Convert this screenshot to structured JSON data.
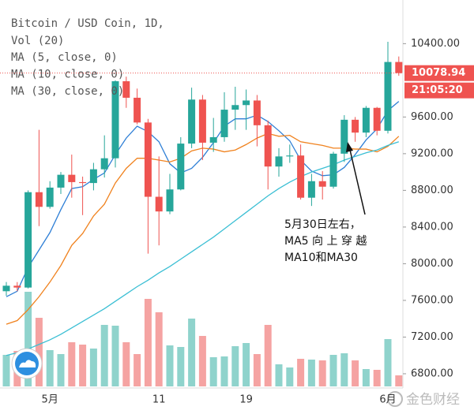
{
  "chart_data": {
    "type": "candlestick",
    "title": "Bitcoin / USD Coin, 1D,",
    "volume_label": "Vol (20)",
    "categories": [
      null,
      null,
      null,
      null,
      "5月",
      null,
      null,
      null,
      null,
      null,
      null,
      null,
      null,
      null,
      "11",
      null,
      null,
      null,
      null,
      null,
      null,
      null,
      "19",
      null,
      null,
      null,
      null,
      null,
      null,
      null,
      null,
      null,
      null,
      null,
      null,
      "6月",
      null
    ],
    "open": [
      7700,
      7760,
      7740,
      8780,
      8620,
      8830,
      8970,
      8890,
      8880,
      9030,
      9150,
      9990,
      9810,
      9540,
      8730,
      8570,
      8810,
      9310,
      9790,
      9320,
      9380,
      9680,
      9730,
      9780,
      9510,
      9060,
      9170,
      9180,
      8720,
      8900,
      8840,
      9200,
      9570,
      9430,
      9700,
      9450,
      10200
    ],
    "high": [
      7800,
      7800,
      8800,
      9460,
      8900,
      9000,
      9190,
      8950,
      9100,
      9400,
      10000,
      10040,
      9910,
      9580,
      9170,
      8980,
      9380,
      9920,
      9840,
      9590,
      9870,
      9930,
      9900,
      9840,
      9560,
      9260,
      9300,
      9300,
      8980,
      9010,
      9220,
      9620,
      9600,
      9720,
      9710,
      10420,
      10260
    ],
    "low": [
      7650,
      7700,
      7730,
      8410,
      8600,
      8760,
      8720,
      8530,
      8800,
      8940,
      9050,
      9700,
      9520,
      8110,
      8200,
      8540,
      8800,
      9260,
      9130,
      9220,
      9330,
      9460,
      9460,
      9280,
      8810,
      8950,
      9100,
      8700,
      8630,
      8700,
      8820,
      9110,
      9330,
      9380,
      9400,
      9420,
      10050
    ],
    "close": [
      7760,
      7740,
      8780,
      8620,
      8830,
      8970,
      8890,
      8880,
      9030,
      9150,
      9990,
      9810,
      9540,
      8730,
      8570,
      8810,
      9310,
      9790,
      9320,
      9380,
      9680,
      9730,
      9780,
      9510,
      9060,
      9170,
      9180,
      8720,
      8900,
      8840,
      9200,
      9570,
      9430,
      9700,
      9450,
      10200,
      10078.94
    ],
    "volume": [
      40,
      45,
      120,
      87,
      46,
      41,
      56,
      53,
      48,
      78,
      77,
      56,
      41,
      111,
      94,
      52,
      50,
      86,
      64,
      37,
      38,
      51,
      55,
      41,
      78,
      28,
      24,
      35,
      34,
      33,
      40,
      42,
      33,
      22,
      21,
      60,
      14
    ],
    "up_color": "#26a69a",
    "down_color": "#ef5350",
    "up_volume_color": "#8fd3cc",
    "down_volume_color": "#f5a3a2",
    "series": [
      {
        "name": "MA (5, close, 0)",
        "color": "#2e7fd6",
        "values": [
          7640,
          7700,
          7960,
          8150,
          8340,
          8590,
          8820,
          8840,
          8920,
          8990,
          9190,
          9370,
          9500,
          9440,
          9330,
          9090,
          8990,
          9040,
          9160,
          9320,
          9500,
          9580,
          9580,
          9620,
          9550,
          9450,
          9340,
          9130,
          9010,
          8960,
          8970,
          9050,
          9190,
          9350,
          9470,
          9670,
          9770
        ]
      },
      {
        "name": "MA (10, close, 0)",
        "color": "#f0821e",
        "values": [
          7340,
          7380,
          7500,
          7640,
          7800,
          7980,
          8200,
          8330,
          8520,
          8650,
          8880,
          9040,
          9150,
          9150,
          9130,
          9110,
          9150,
          9230,
          9260,
          9250,
          9220,
          9240,
          9300,
          9370,
          9420,
          9390,
          9400,
          9330,
          9310,
          9290,
          9260,
          9260,
          9250,
          9250,
          9220,
          9280,
          9390
        ]
      },
      {
        "name": "MA (30, close, 0)",
        "color": "#3bbfd4",
        "values": [
          7000,
          7030,
          7070,
          7120,
          7170,
          7230,
          7300,
          7370,
          7440,
          7510,
          7590,
          7670,
          7750,
          7820,
          7900,
          7970,
          8050,
          8130,
          8210,
          8290,
          8380,
          8470,
          8560,
          8650,
          8740,
          8820,
          8890,
          8950,
          9000,
          9040,
          9080,
          9130,
          9170,
          9210,
          9240,
          9290,
          9330
        ]
      }
    ],
    "ylim": [
      6662,
      10876
    ],
    "yticks": [
      {
        "value": 6800,
        "label": "6800.00"
      },
      {
        "value": 7200,
        "label": "7200.00"
      },
      {
        "value": 7600,
        "label": "7600.00"
      },
      {
        "value": 8000,
        "label": "8000.00"
      },
      {
        "value": 8400,
        "label": "8400.00"
      },
      {
        "value": 8800,
        "label": "8800.00"
      },
      {
        "value": 9200,
        "label": "9200.00"
      },
      {
        "value": 9600,
        "label": "9600.00"
      },
      {
        "value": 10400,
        "label": "10400.00"
      }
    ],
    "last_price": 10078.94,
    "countdown": "21:05:20",
    "annotation": [
      "5月30日左右，",
      "MA5 向 上 穿 越",
      "MA10和MA30"
    ],
    "watermark": "金色财经"
  }
}
